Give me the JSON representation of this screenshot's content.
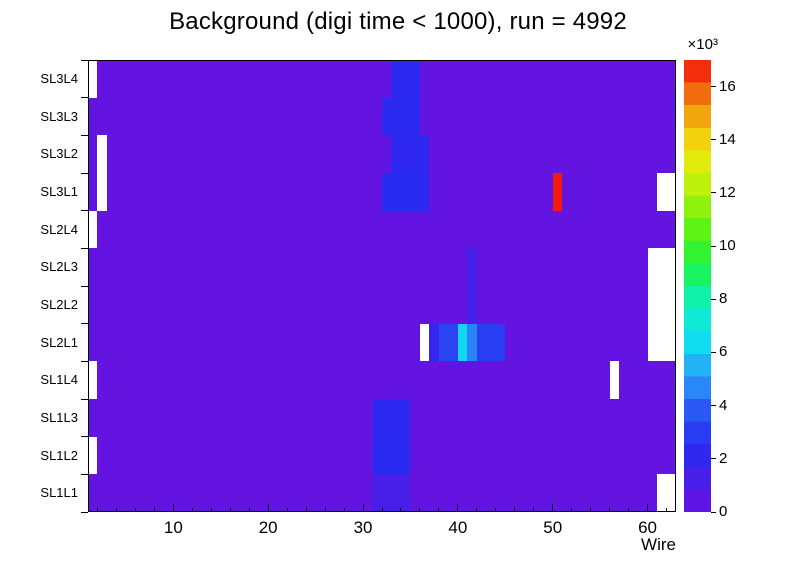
{
  "chart_data": {
    "type": "heatmap",
    "title": "Background (digi time < 1000), run = 4992",
    "xlabel": "Wire",
    "x_range": [
      1,
      62
    ],
    "x_major_ticks": [
      10,
      20,
      30,
      40,
      50,
      60
    ],
    "rows_top_to_bottom": [
      "SL3L4",
      "SL3L3",
      "SL3L2",
      "SL3L1",
      "SL2L4",
      "SL2L3",
      "SL2L2",
      "SL2L1",
      "SL1L4",
      "SL1L3",
      "SL1L2",
      "SL1L1"
    ],
    "z_axis": {
      "scale_label": "×10³",
      "max": 17000,
      "tick_values_thousands": [
        0,
        2,
        4,
        6,
        8,
        10,
        12,
        14,
        16
      ]
    },
    "background_value": 200,
    "empty_color": "#ffffff",
    "palette": [
      {
        "t": 0.0,
        "color": "#6812e0"
      },
      {
        "t": 0.08,
        "color": "#4620e8"
      },
      {
        "t": 0.14,
        "color": "#2a2af2"
      },
      {
        "t": 0.22,
        "color": "#2a56f5"
      },
      {
        "t": 0.3,
        "color": "#2a9df8"
      },
      {
        "t": 0.38,
        "color": "#0fe0f0"
      },
      {
        "t": 0.46,
        "color": "#0df2c0"
      },
      {
        "t": 0.55,
        "color": "#1df23c"
      },
      {
        "t": 0.64,
        "color": "#6cf20d"
      },
      {
        "t": 0.73,
        "color": "#c3f20d"
      },
      {
        "t": 0.8,
        "color": "#f2e90d"
      },
      {
        "t": 0.88,
        "color": "#f2a00d"
      },
      {
        "t": 0.94,
        "color": "#f25c0d"
      },
      {
        "t": 1.0,
        "color": "#f20d0d"
      }
    ],
    "features": [
      {
        "row": "SL3L4",
        "w1": 33,
        "w2": 35,
        "v": 2300
      },
      {
        "row": "SL3L3",
        "w1": 32,
        "w2": 35,
        "v": 2300
      },
      {
        "row": "SL3L2",
        "w1": 33,
        "w2": 36,
        "v": 2200
      },
      {
        "row": "SL3L1",
        "w1": 32,
        "w2": 36,
        "v": 2400
      },
      {
        "row": "SL3L1",
        "w1": 50,
        "w2": 50,
        "v": 16800
      },
      {
        "row": "SL2L3",
        "w1": 41,
        "w2": 41,
        "v": 1400
      },
      {
        "row": "SL2L2",
        "w1": 41,
        "w2": 41,
        "v": 1400
      },
      {
        "row": "SL2L1",
        "w1": 37,
        "w2": 37,
        "v": 2000
      },
      {
        "row": "SL2L1",
        "w1": 38,
        "w2": 39,
        "v": 3200
      },
      {
        "row": "SL2L1",
        "w1": 40,
        "w2": 40,
        "v": 6300
      },
      {
        "row": "SL2L1",
        "w1": 41,
        "w2": 41,
        "v": 4600
      },
      {
        "row": "SL2L1",
        "w1": 42,
        "w2": 44,
        "v": 3000
      },
      {
        "row": "SL1L3",
        "w1": 31,
        "w2": 34,
        "v": 2300
      },
      {
        "row": "SL1L2",
        "w1": 31,
        "w2": 34,
        "v": 2400
      },
      {
        "row": "SL1L1",
        "w1": 31,
        "w2": 34,
        "v": 1300
      },
      {
        "row": "SL3L4",
        "w1": 1,
        "w2": 1,
        "v": null
      },
      {
        "row": "SL2L4",
        "w1": 1,
        "w2": 1,
        "v": null
      },
      {
        "row": "SL1L4",
        "w1": 1,
        "w2": 1,
        "v": null
      },
      {
        "row": "SL1L2",
        "w1": 1,
        "w2": 1,
        "v": null
      },
      {
        "row": "SL3L2",
        "w1": 2,
        "w2": 2,
        "v": null
      },
      {
        "row": "SL3L1",
        "w1": 2,
        "w2": 2,
        "v": null
      },
      {
        "row": "SL2L1",
        "w1": 36,
        "w2": 36,
        "v": null
      },
      {
        "row": "SL3L1",
        "w1": 61,
        "w2": 62,
        "v": null
      },
      {
        "row": "SL2L3",
        "w1": 60,
        "w2": 62,
        "v": null
      },
      {
        "row": "SL2L2",
        "w1": 60,
        "w2": 62,
        "v": null
      },
      {
        "row": "SL2L1",
        "w1": 60,
        "w2": 62,
        "v": null
      },
      {
        "row": "SL1L4",
        "w1": 56,
        "w2": 56,
        "v": null
      },
      {
        "row": "SL1L1",
        "w1": 61,
        "w2": 62,
        "v": null
      }
    ]
  }
}
